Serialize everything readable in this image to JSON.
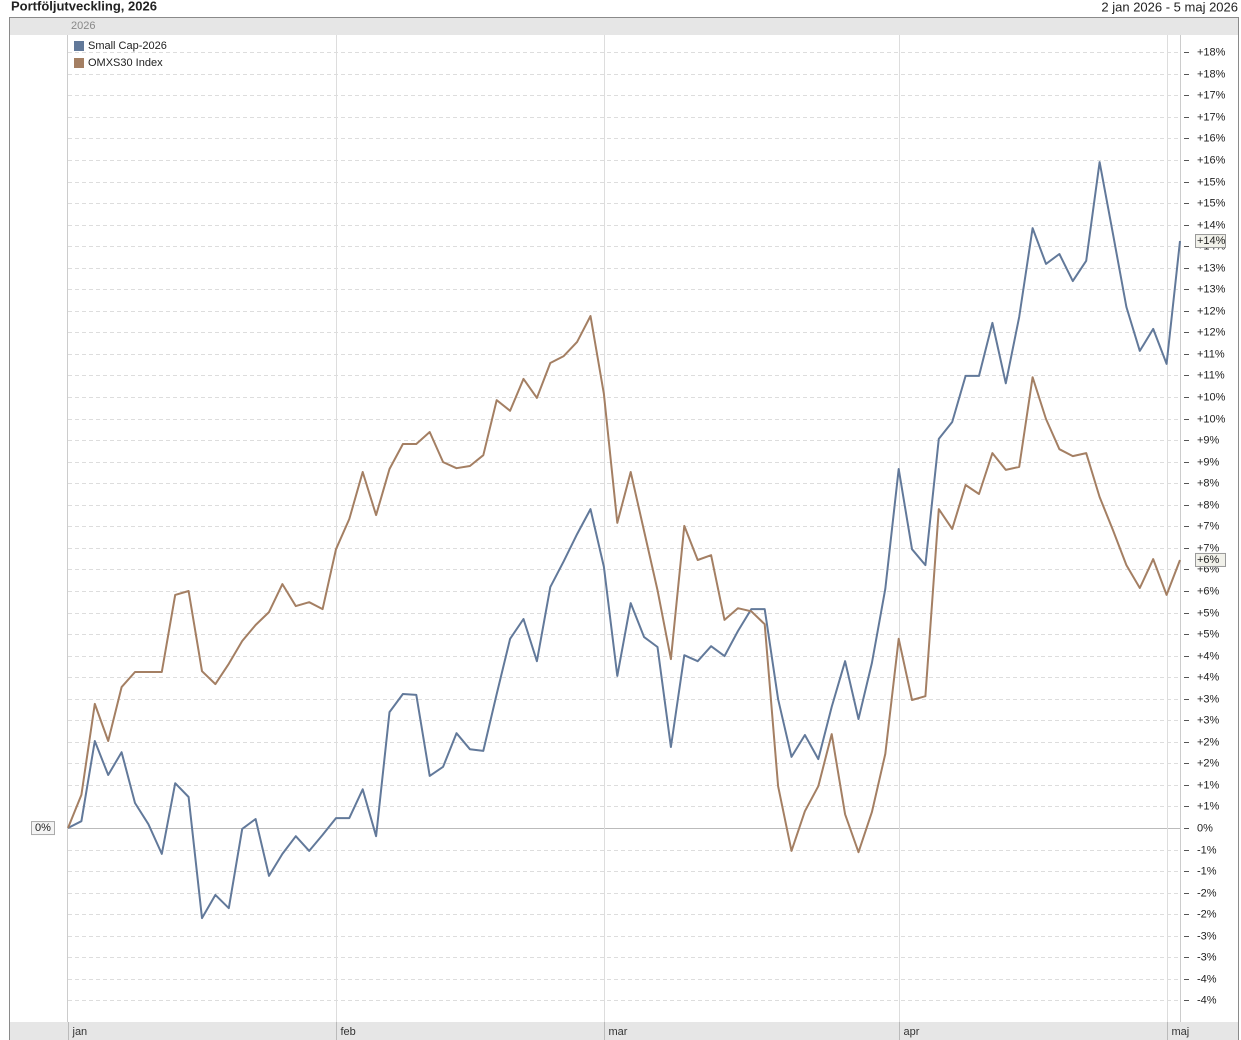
{
  "chart_data": {
    "type": "line",
    "title": "Portföljutveckling, 2026",
    "date_range": "2 jan 2026 - 5 maj 2026",
    "period_label": "2026",
    "baseline_label": "0%",
    "categories": [
      "jan",
      null,
      null,
      null,
      null,
      null,
      null,
      null,
      null,
      null,
      null,
      null,
      null,
      null,
      null,
      null,
      null,
      null,
      null,
      null,
      "feb",
      null,
      null,
      null,
      null,
      null,
      null,
      null,
      null,
      null,
      null,
      null,
      null,
      null,
      null,
      null,
      null,
      null,
      null,
      null,
      "mar",
      null,
      null,
      null,
      null,
      null,
      null,
      null,
      null,
      null,
      null,
      null,
      null,
      null,
      null,
      null,
      null,
      null,
      null,
      null,
      null,
      null,
      "apr",
      null,
      null,
      null,
      null,
      null,
      null,
      null,
      null,
      null,
      null,
      null,
      null,
      null,
      null,
      null,
      null,
      null,
      null,
      null,
      "maj",
      null
    ],
    "series": [
      {
        "name": "Small Cap-2026",
        "color": "#62799a",
        "end_label": "+14%",
        "values": [
          0,
          0.16,
          2.02,
          1.23,
          1.76,
          0.58,
          0.09,
          -0.6,
          1.04,
          0.72,
          -2.09,
          -1.55,
          -1.86,
          -0.02,
          0.21,
          -1.11,
          -0.6,
          -0.19,
          -0.53,
          -0.16,
          0.23,
          0.23,
          0.9,
          -0.19,
          2.69,
          3.11,
          3.09,
          1.21,
          1.42,
          2.2,
          1.83,
          1.79,
          3.11,
          4.39,
          4.85,
          3.87,
          5.59,
          6.19,
          6.82,
          7.4,
          6.06,
          3.53,
          5.22,
          4.43,
          4.2,
          1.88,
          4.01,
          3.87,
          4.22,
          3.99,
          4.57,
          5.08,
          5.08,
          2.99,
          1.65,
          2.16,
          1.6,
          2.81,
          3.87,
          2.53,
          3.83,
          5.55,
          8.33,
          6.47,
          6.1,
          9.03,
          9.42,
          10.49,
          10.49,
          11.72,
          10.32,
          11.86,
          13.92,
          13.09,
          13.32,
          12.69,
          13.16,
          15.45,
          13.78,
          12.09,
          11.07,
          11.58,
          10.77,
          13.62
        ]
      },
      {
        "name": "OMXS30 Index",
        "color": "#a47f63",
        "end_label": "+6%",
        "values": [
          0,
          0.77,
          2.88,
          2.02,
          3.27,
          3.62,
          3.62,
          3.62,
          5.41,
          5.5,
          3.64,
          3.34,
          3.81,
          4.34,
          4.71,
          5.01,
          5.66,
          5.15,
          5.24,
          5.08,
          6.47,
          7.17,
          8.26,
          7.26,
          8.33,
          8.91,
          8.91,
          9.19,
          8.49,
          8.35,
          8.4,
          8.65,
          9.93,
          9.68,
          10.42,
          9.98,
          10.79,
          10.95,
          11.28,
          11.88,
          10.07,
          7.08,
          8.26,
          6.89,
          5.52,
          3.92,
          7.01,
          6.22,
          6.33,
          4.83,
          5.1,
          5.03,
          4.73,
          0.97,
          -0.53,
          0.39,
          0.97,
          2.18,
          0.32,
          -0.56,
          0.37,
          1.72,
          4.39,
          2.97,
          3.06,
          7.4,
          6.94,
          7.96,
          7.75,
          8.7,
          8.31,
          8.38,
          10.46,
          9.49,
          8.79,
          8.63,
          8.7,
          7.68,
          6.91,
          6.1,
          5.57,
          6.24,
          5.41,
          6.22
        ]
      }
    ],
    "ylim": [
      -4.5,
      18.4
    ],
    "yticks": [
      {
        "value": -4,
        "label": "-4%"
      },
      {
        "value": -3.5,
        "label": "-4%"
      },
      {
        "value": -3,
        "label": "-3%"
      },
      {
        "value": -2.5,
        "label": "-3%"
      },
      {
        "value": -2,
        "label": "-2%"
      },
      {
        "value": -1.5,
        "label": "-2%"
      },
      {
        "value": -1,
        "label": "-1%"
      },
      {
        "value": -0.5,
        "label": "-1%"
      },
      {
        "value": 0,
        "label": "0%"
      },
      {
        "value": 0.5,
        "label": "+1%"
      },
      {
        "value": 1,
        "label": "+1%"
      },
      {
        "value": 1.5,
        "label": "+2%"
      },
      {
        "value": 2,
        "label": "+2%"
      },
      {
        "value": 2.5,
        "label": "+3%"
      },
      {
        "value": 3,
        "label": "+3%"
      },
      {
        "value": 3.5,
        "label": "+4%"
      },
      {
        "value": 4,
        "label": "+4%"
      },
      {
        "value": 4.5,
        "label": "+5%"
      },
      {
        "value": 5,
        "label": "+5%"
      },
      {
        "value": 5.5,
        "label": "+6%"
      },
      {
        "value": 6,
        "label": "+6%"
      },
      {
        "value": 6.5,
        "label": "+7%"
      },
      {
        "value": 7,
        "label": "+7%"
      },
      {
        "value": 7.5,
        "label": "+8%"
      },
      {
        "value": 8,
        "label": "+8%"
      },
      {
        "value": 8.5,
        "label": "+9%"
      },
      {
        "value": 9,
        "label": "+9%"
      },
      {
        "value": 9.5,
        "label": "+10%"
      },
      {
        "value": 10,
        "label": "+10%"
      },
      {
        "value": 10.5,
        "label": "+11%"
      },
      {
        "value": 11,
        "label": "+11%"
      },
      {
        "value": 11.5,
        "label": "+12%"
      },
      {
        "value": 12,
        "label": "+12%"
      },
      {
        "value": 12.5,
        "label": "+13%"
      },
      {
        "value": 13,
        "label": "+13%"
      },
      {
        "value": 13.5,
        "label": "+14%"
      },
      {
        "value": 14,
        "label": "+14%"
      },
      {
        "value": 14.5,
        "label": "+15%"
      },
      {
        "value": 15,
        "label": "+15%"
      },
      {
        "value": 15.5,
        "label": "+16%"
      },
      {
        "value": 16,
        "label": "+16%"
      },
      {
        "value": 16.5,
        "label": "+17%"
      },
      {
        "value": 17,
        "label": "+17%"
      },
      {
        "value": 17.5,
        "label": "+18%"
      },
      {
        "value": 18,
        "label": "+18%"
      }
    ],
    "grid": true,
    "legend": "top-left"
  }
}
